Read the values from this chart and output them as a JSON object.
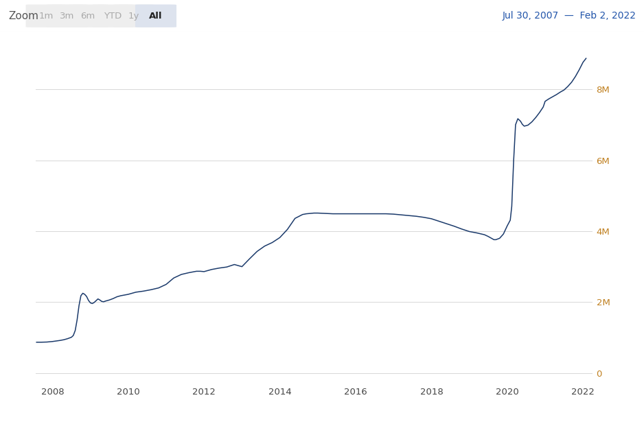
{
  "date_range_text": "Jul 30, 2007  —  Feb 2, 2022",
  "zoom_label": "Zoom",
  "zoom_buttons": [
    "1m",
    "3m",
    "6m",
    "YTD",
    "1y",
    "All"
  ],
  "zoom_active": "All",
  "line_color": "#1b3a6b",
  "background_color": "#ffffff",
  "grid_color": "#d8d8d8",
  "ytick_labels": [
    "0",
    "2M",
    "4M",
    "6M",
    "8M"
  ],
  "ytick_values": [
    0,
    2000000,
    4000000,
    6000000,
    8000000
  ],
  "xtick_labels": [
    "2008",
    "2010",
    "2012",
    "2014",
    "2016",
    "2018",
    "2020",
    "2022"
  ],
  "xtick_values": [
    2008,
    2010,
    2012,
    2014,
    2016,
    2018,
    2020,
    2022
  ],
  "xlim": [
    2007.55,
    2022.25
  ],
  "ylim": [
    -300000,
    9500000
  ],
  "zoom_active_bg": "#dde3ee",
  "zoom_active_color": "#222222",
  "zoom_inactive_color": "#aaaaaa",
  "zoom_btn_bg": "#eeeeee",
  "date_color": "#2255aa",
  "ytick_color": "#c08020",
  "xtick_color": "#444444",
  "series": [
    [
      2007.58,
      870000
    ],
    [
      2007.7,
      870000
    ],
    [
      2007.85,
      875000
    ],
    [
      2008.0,
      890000
    ],
    [
      2008.1,
      905000
    ],
    [
      2008.2,
      920000
    ],
    [
      2008.3,
      940000
    ],
    [
      2008.4,
      970000
    ],
    [
      2008.5,
      1010000
    ],
    [
      2008.55,
      1060000
    ],
    [
      2008.6,
      1200000
    ],
    [
      2008.65,
      1500000
    ],
    [
      2008.7,
      1900000
    ],
    [
      2008.75,
      2180000
    ],
    [
      2008.8,
      2250000
    ],
    [
      2008.85,
      2220000
    ],
    [
      2008.9,
      2160000
    ],
    [
      2008.95,
      2050000
    ],
    [
      2009.0,
      1980000
    ],
    [
      2009.05,
      1960000
    ],
    [
      2009.1,
      1990000
    ],
    [
      2009.15,
      2040000
    ],
    [
      2009.2,
      2090000
    ],
    [
      2009.25,
      2060000
    ],
    [
      2009.3,
      2020000
    ],
    [
      2009.35,
      2010000
    ],
    [
      2009.4,
      2030000
    ],
    [
      2009.5,
      2060000
    ],
    [
      2009.6,
      2100000
    ],
    [
      2009.7,
      2150000
    ],
    [
      2009.8,
      2180000
    ],
    [
      2009.9,
      2200000
    ],
    [
      2010.0,
      2220000
    ],
    [
      2010.2,
      2280000
    ],
    [
      2010.4,
      2310000
    ],
    [
      2010.6,
      2350000
    ],
    [
      2010.8,
      2400000
    ],
    [
      2011.0,
      2500000
    ],
    [
      2011.2,
      2680000
    ],
    [
      2011.4,
      2780000
    ],
    [
      2011.6,
      2830000
    ],
    [
      2011.8,
      2870000
    ],
    [
      2011.9,
      2870000
    ],
    [
      2012.0,
      2860000
    ],
    [
      2012.2,
      2920000
    ],
    [
      2012.4,
      2960000
    ],
    [
      2012.6,
      2990000
    ],
    [
      2012.8,
      3060000
    ],
    [
      2013.0,
      3000000
    ],
    [
      2013.2,
      3220000
    ],
    [
      2013.4,
      3430000
    ],
    [
      2013.6,
      3580000
    ],
    [
      2013.8,
      3680000
    ],
    [
      2014.0,
      3820000
    ],
    [
      2014.2,
      4050000
    ],
    [
      2014.4,
      4360000
    ],
    [
      2014.6,
      4470000
    ],
    [
      2014.7,
      4490000
    ],
    [
      2014.8,
      4500000
    ],
    [
      2014.9,
      4510000
    ],
    [
      2015.0,
      4510000
    ],
    [
      2015.2,
      4500000
    ],
    [
      2015.4,
      4490000
    ],
    [
      2015.6,
      4490000
    ],
    [
      2015.8,
      4490000
    ],
    [
      2016.0,
      4490000
    ],
    [
      2016.2,
      4490000
    ],
    [
      2016.4,
      4490000
    ],
    [
      2016.6,
      4490000
    ],
    [
      2016.8,
      4490000
    ],
    [
      2017.0,
      4480000
    ],
    [
      2017.2,
      4460000
    ],
    [
      2017.4,
      4440000
    ],
    [
      2017.6,
      4420000
    ],
    [
      2017.8,
      4390000
    ],
    [
      2018.0,
      4350000
    ],
    [
      2018.2,
      4280000
    ],
    [
      2018.4,
      4210000
    ],
    [
      2018.6,
      4140000
    ],
    [
      2018.8,
      4060000
    ],
    [
      2019.0,
      3990000
    ],
    [
      2019.2,
      3950000
    ],
    [
      2019.4,
      3900000
    ],
    [
      2019.5,
      3850000
    ],
    [
      2019.6,
      3790000
    ],
    [
      2019.65,
      3760000
    ],
    [
      2019.7,
      3760000
    ],
    [
      2019.8,
      3800000
    ],
    [
      2019.9,
      3920000
    ],
    [
      2020.0,
      4150000
    ],
    [
      2020.08,
      4310000
    ],
    [
      2020.12,
      4700000
    ],
    [
      2020.17,
      6000000
    ],
    [
      2020.22,
      7000000
    ],
    [
      2020.28,
      7170000
    ],
    [
      2020.35,
      7100000
    ],
    [
      2020.4,
      7010000
    ],
    [
      2020.45,
      6960000
    ],
    [
      2020.55,
      6990000
    ],
    [
      2020.65,
      7080000
    ],
    [
      2020.75,
      7200000
    ],
    [
      2020.85,
      7340000
    ],
    [
      2020.95,
      7500000
    ],
    [
      2021.0,
      7660000
    ],
    [
      2021.1,
      7730000
    ],
    [
      2021.2,
      7790000
    ],
    [
      2021.3,
      7850000
    ],
    [
      2021.4,
      7920000
    ],
    [
      2021.5,
      7980000
    ],
    [
      2021.6,
      8080000
    ],
    [
      2021.7,
      8200000
    ],
    [
      2021.8,
      8360000
    ],
    [
      2021.9,
      8550000
    ],
    [
      2022.0,
      8760000
    ],
    [
      2022.08,
      8870000
    ]
  ]
}
